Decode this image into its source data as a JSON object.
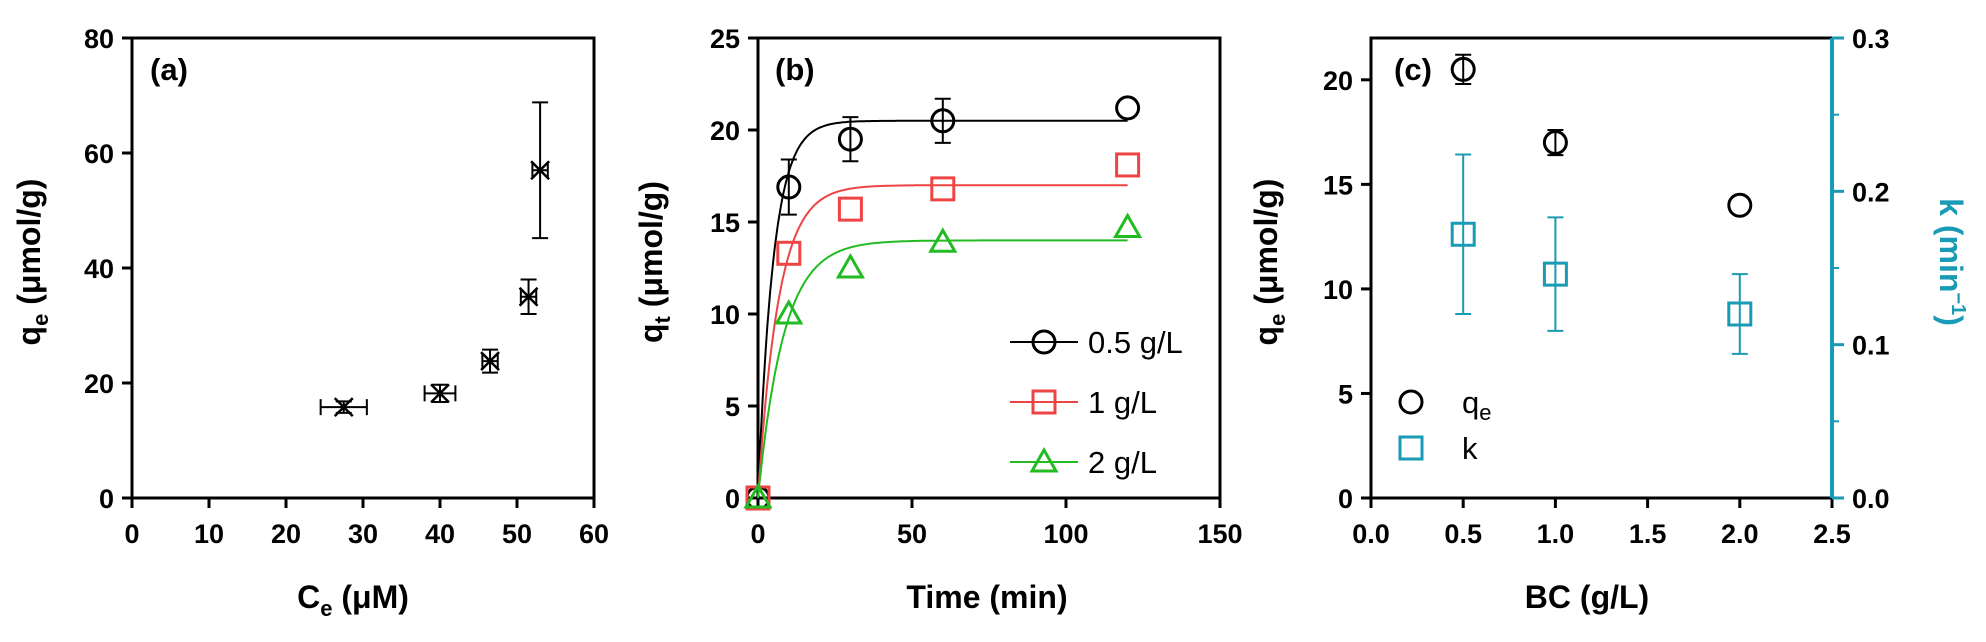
{
  "chart_data": [
    {
      "panel": "(a)",
      "type": "scatter",
      "xlabel": "Ce (μM)",
      "xlabel_main": "C",
      "xlabel_sub": "e",
      "xlabel_rest": " (μM)",
      "ylabel": "qe (μmol/g)",
      "ylabel_main": "q",
      "ylabel_sub": "e",
      "ylabel_rest": " (μmol/g)",
      "xlim": [
        0,
        60
      ],
      "ylim": [
        0,
        80
      ],
      "xticks": [
        0,
        10,
        20,
        30,
        40,
        50,
        60
      ],
      "yticks": [
        0,
        20,
        40,
        60,
        80
      ],
      "points": [
        {
          "x": 27.5,
          "y": 15.8,
          "xerr": 3.0,
          "yerr": 1.0
        },
        {
          "x": 40.0,
          "y": 18.2,
          "xerr": 2.0,
          "yerr": 1.5
        },
        {
          "x": 46.5,
          "y": 23.8,
          "xerr": 1.0,
          "yerr": 2.0
        },
        {
          "x": 51.5,
          "y": 35.0,
          "xerr": 1.0,
          "yerr": 3.0
        },
        {
          "x": 53.0,
          "y": 57.0,
          "xerr": 1.0,
          "yerr": 11.8
        }
      ]
    },
    {
      "panel": "(b)",
      "type": "scatter",
      "xlabel": "Time (min)",
      "ylabel": "qt (μmol/g)",
      "ylabel_main": "q",
      "ylabel_sub": "t",
      "ylabel_rest": " (μmol/g)",
      "xlim": [
        0,
        150
      ],
      "ylim": [
        0,
        25
      ],
      "xticks": [
        0,
        50,
        100,
        150
      ],
      "yticks": [
        0,
        5,
        10,
        15,
        20,
        25
      ],
      "legend_position": "lower-right",
      "series": [
        {
          "name": "0.5 g/L",
          "color": "#000000",
          "marker": "circle",
          "x": [
            0,
            10,
            30,
            60,
            120
          ],
          "y": [
            0,
            16.9,
            19.5,
            20.5,
            21.2
          ],
          "yerr": [
            0,
            1.5,
            1.2,
            1.2,
            0
          ],
          "fit": {
            "qe": 20.5,
            "k": 0.2
          }
        },
        {
          "name": "1 g/L",
          "color": "#ee4444",
          "marker": "square",
          "x": [
            0,
            10,
            30,
            60,
            120
          ],
          "y": [
            0,
            13.3,
            15.7,
            16.8,
            18.1
          ],
          "yerr": [
            0,
            0,
            0,
            0,
            0
          ],
          "fit": {
            "qe": 17.0,
            "k": 0.15
          }
        },
        {
          "name": "2 g/L",
          "color": "#22bb22",
          "marker": "triangle",
          "x": [
            0,
            10,
            30,
            60,
            120
          ],
          "y": [
            0,
            10.0,
            12.5,
            13.9,
            14.7
          ],
          "yerr": [
            0,
            0,
            0,
            0,
            0
          ],
          "fit": {
            "qe": 14.0,
            "k": 0.12
          }
        }
      ]
    },
    {
      "panel": "(c)",
      "type": "scatter",
      "xlabel": "BC (g/L)",
      "ylabel": "qe (μmol/g)",
      "ylabel_main": "q",
      "ylabel_sub": "e",
      "ylabel_rest": " (μmol/g)",
      "y2label": "k (min−1)",
      "y2label_main": "k (min",
      "y2label_sup": "−1",
      "y2label_rest": ")",
      "xlim": [
        0,
        2.5
      ],
      "ylim": [
        0,
        22
      ],
      "y2lim": [
        0,
        0.3
      ],
      "xticks": [
        "0.0",
        "0.5",
        "1.0",
        "1.5",
        "2.0",
        "2.5"
      ],
      "yticks": [
        0,
        5,
        10,
        15,
        20
      ],
      "y2ticks": [
        "0.0",
        "0.1",
        "0.2",
        "0.3"
      ],
      "axis2_color": "#1a9bb5",
      "legend_position": "lower-left",
      "series": [
        {
          "name": "qe",
          "name_main": "q",
          "name_sub": "e",
          "color": "#000000",
          "marker": "circle",
          "axis": "left",
          "x": [
            0.5,
            1.0,
            2.0
          ],
          "y": [
            20.5,
            17.0,
            14.0
          ],
          "yerr": [
            0.7,
            0.6,
            0
          ]
        },
        {
          "name": "k",
          "color": "#1a9bb5",
          "marker": "square",
          "axis": "right",
          "x": [
            0.5,
            1.0,
            2.0
          ],
          "y": [
            0.172,
            0.146,
            0.12
          ],
          "yerr": [
            0.052,
            0.037,
            0.026
          ]
        }
      ]
    }
  ]
}
